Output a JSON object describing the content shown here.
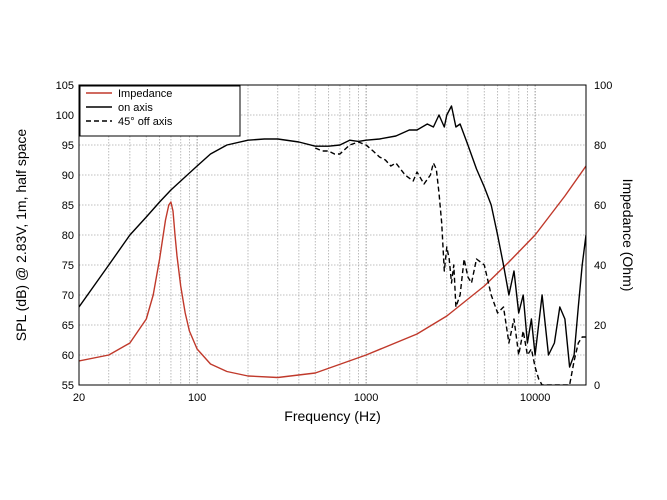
{
  "chart_data": {
    "type": "line",
    "xlabel": "Frequency (Hz)",
    "ylabel": "SPL (dB) @ 2.83V, 1m, half space",
    "y2label": "Impedance (Ohm)",
    "x_scale": "log",
    "xlim": [
      20,
      20000
    ],
    "ylim": [
      55,
      105
    ],
    "y2lim": [
      0,
      100
    ],
    "x_ticks": [
      20,
      100,
      1000,
      10000
    ],
    "x_tick_labels": [
      "20",
      "100",
      "1000",
      "10000"
    ],
    "y_ticks": [
      55,
      60,
      65,
      70,
      75,
      80,
      85,
      90,
      95,
      100,
      105
    ],
    "y_tick_labels": [
      "55",
      "60",
      "65",
      "70",
      "75",
      "80",
      "85",
      "90",
      "95",
      "100",
      "105"
    ],
    "y2_ticks": [
      0,
      20,
      40,
      60,
      80,
      100
    ],
    "y2_tick_labels": [
      "0",
      "20",
      "40",
      "60",
      "80",
      "100"
    ],
    "grid": true,
    "legend_position": "top-left",
    "series": [
      {
        "name": "Impedance",
        "axis": "right",
        "color": "#c0392b",
        "dash": "solid",
        "x": [
          20,
          30,
          40,
          50,
          55,
          60,
          65,
          68,
          70,
          72,
          74,
          76,
          80,
          85,
          90,
          100,
          120,
          150,
          200,
          300,
          500,
          1000,
          2000,
          3000,
          5000,
          7000,
          10000,
          15000,
          20000
        ],
        "y": [
          8,
          10,
          14,
          22,
          30,
          42,
          55,
          60,
          61,
          58,
          50,
          43,
          33,
          24,
          18,
          12,
          7,
          4.5,
          3,
          2.5,
          4,
          10,
          17,
          23,
          33,
          41,
          50,
          63,
          73
        ]
      },
      {
        "name": "on axis",
        "axis": "left",
        "color": "#000000",
        "dash": "solid",
        "x": [
          20,
          30,
          40,
          50,
          60,
          70,
          80,
          100,
          120,
          150,
          200,
          250,
          300,
          400,
          500,
          600,
          700,
          800,
          900,
          1000,
          1200,
          1500,
          1800,
          2000,
          2300,
          2500,
          2700,
          2900,
          3000,
          3200,
          3400,
          3600,
          4000,
          4500,
          5000,
          5500,
          6000,
          6500,
          7000,
          7500,
          8000,
          8500,
          9000,
          9500,
          10000,
          11000,
          12000,
          13000,
          14000,
          15000,
          16000,
          17000,
          18000,
          19000,
          20000
        ],
        "y": [
          68,
          75,
          80,
          83,
          85.5,
          87.5,
          89,
          91.5,
          93.5,
          95,
          95.8,
          96,
          96,
          95.5,
          94.8,
          94.8,
          95,
          95.8,
          95.6,
          95.8,
          96,
          96.5,
          97.5,
          97.5,
          98.5,
          98,
          100,
          98,
          100,
          101.5,
          98,
          98.5,
          95,
          91,
          88,
          85,
          80,
          75,
          70,
          74,
          67,
          70,
          62,
          66,
          60,
          70,
          60,
          62,
          68,
          66,
          58,
          60,
          68,
          75,
          80
        ]
      },
      {
        "name": "45° off axis",
        "axis": "left",
        "color": "#000000",
        "dash": "dashed",
        "x": [
          500,
          550,
          600,
          650,
          700,
          800,
          900,
          1000,
          1100,
          1200,
          1300,
          1400,
          1500,
          1700,
          1900,
          2000,
          2200,
          2400,
          2500,
          2600,
          2700,
          2800,
          2900,
          3000,
          3100,
          3200,
          3300,
          3400,
          3600,
          3800,
          4000,
          4200,
          4500,
          5000,
          5500,
          6000,
          6500,
          7000,
          7500,
          8000,
          8500,
          9000,
          9500,
          10000,
          10500,
          11000,
          16000,
          17000,
          18000,
          19000,
          20000
        ],
        "y": [
          94.5,
          94,
          94,
          93.5,
          93.5,
          95,
          95.5,
          95,
          94,
          93,
          92.5,
          91.5,
          92,
          90,
          89,
          90.5,
          88.5,
          90,
          92,
          91,
          87,
          82,
          74,
          78,
          76,
          72,
          75,
          68,
          70,
          76,
          73,
          72,
          76,
          75,
          70,
          67,
          68,
          62,
          66,
          60,
          64,
          60,
          61,
          58,
          56,
          55,
          55,
          59,
          62,
          63,
          63
        ]
      }
    ]
  }
}
